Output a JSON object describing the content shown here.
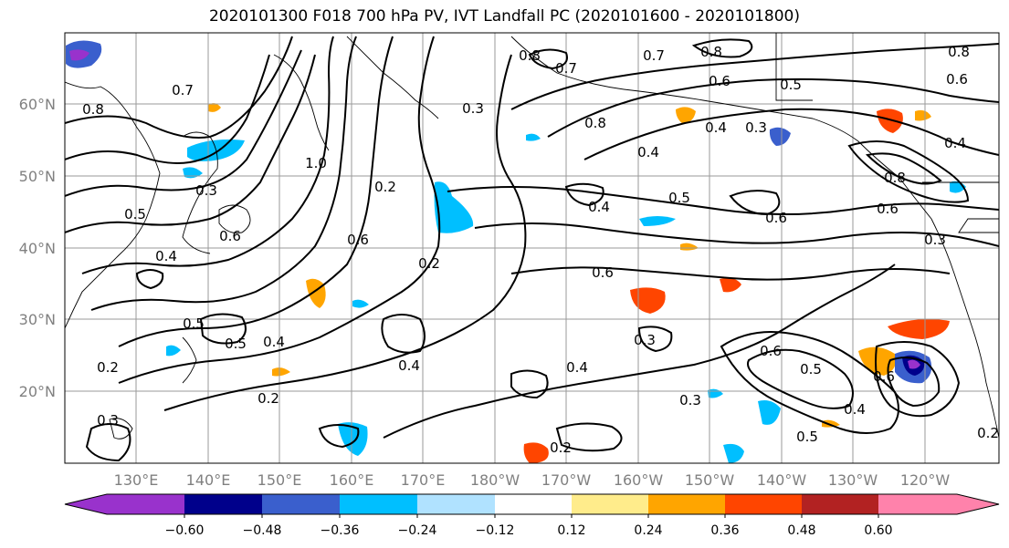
{
  "title": "2020101300 F018 700 hPa PV, IVT Landfall PC (2020101600 - 2020101800)",
  "map": {
    "lat_labels": [
      "60°N",
      "50°N",
      "40°N",
      "30°N",
      "20°N"
    ],
    "lon_labels": [
      "130°E",
      "140°E",
      "150°E",
      "160°E",
      "170°E",
      "180°W",
      "170°W",
      "160°W",
      "150°W",
      "140°W",
      "130°W",
      "120°W"
    ],
    "contour_labels": [
      {
        "text": "0.8"
      },
      {
        "text": "0.7"
      },
      {
        "text": "0.8"
      },
      {
        "text": "0.6"
      },
      {
        "text": "0.5"
      },
      {
        "text": "0.6"
      },
      {
        "text": "0.7"
      },
      {
        "text": "0.8"
      },
      {
        "text": "0.3"
      },
      {
        "text": "0.4"
      },
      {
        "text": "0.3"
      },
      {
        "text": "0.4"
      },
      {
        "text": "0.5"
      },
      {
        "text": "0.6"
      },
      {
        "text": "0.4"
      },
      {
        "text": "0.6"
      },
      {
        "text": "0.2"
      },
      {
        "text": "0.3"
      },
      {
        "text": "0.4"
      },
      {
        "text": "0.3"
      },
      {
        "text": "0.2"
      },
      {
        "text": "0.4"
      },
      {
        "text": "0.5"
      },
      {
        "text": "0.6"
      },
      {
        "text": "0.6"
      },
      {
        "text": "0.4"
      },
      {
        "text": "0.8"
      },
      {
        "text": "0.6"
      },
      {
        "text": "0.5"
      },
      {
        "text": "0.3"
      },
      {
        "text": "0.4"
      },
      {
        "text": "0.5"
      },
      {
        "text": "0.5"
      },
      {
        "text": "0.2"
      },
      {
        "text": "0.2"
      },
      {
        "text": "0.3"
      },
      {
        "text": "0.4"
      },
      {
        "text": "0.8"
      },
      {
        "text": "0.7"
      },
      {
        "text": "0.6"
      },
      {
        "text": "0.2"
      },
      {
        "text": "0.5"
      },
      {
        "text": "0.6"
      },
      {
        "text": "0.4"
      },
      {
        "text": "0.3"
      },
      {
        "text": "0.2"
      },
      {
        "text": "1.0"
      },
      {
        "text": "0.8"
      }
    ]
  },
  "colorbar": {
    "ticks": [
      "−0.60",
      "−0.48",
      "−0.36",
      "−0.24",
      "−0.12",
      "0.12",
      "0.24",
      "0.36",
      "0.48",
      "0.60"
    ],
    "colors": [
      "#9932cc",
      "#00008b",
      "#3a5fcd",
      "#00bfff",
      "#b0e2ff",
      "#ffffff",
      "#ffec8b",
      "#ffa500",
      "#ff4500",
      "#b22222",
      "#ff82ab"
    ]
  }
}
